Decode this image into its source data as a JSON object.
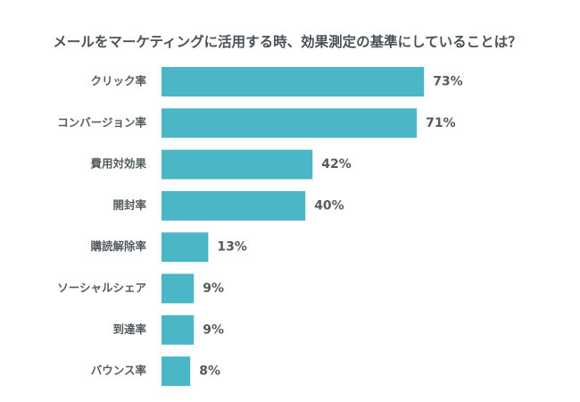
{
  "chart_data": {
    "type": "bar",
    "orientation": "horizontal",
    "title": "メールをマーケティングに活用する時、効果測定の基準にしていることは？",
    "categories": [
      "クリック率",
      "コンバージョン率",
      "費用対効果",
      "開封率",
      "購読解除率",
      "ソーシャルシェア",
      "到達率",
      "バウンス率"
    ],
    "values": [
      73,
      71,
      42,
      40,
      13,
      9,
      9,
      8
    ],
    "value_labels": [
      "73%",
      "71%",
      "42%",
      "40%",
      "13%",
      "9%",
      "9%",
      "8%"
    ],
    "unit": "%",
    "xlim": [
      0,
      100
    ],
    "grid": false,
    "legend": "none",
    "bar_color": "#4bb6c6"
  }
}
